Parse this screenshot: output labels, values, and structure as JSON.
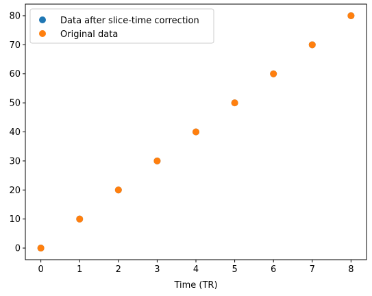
{
  "chart_data": {
    "type": "scatter",
    "title": "",
    "xlabel": "Time (TR)",
    "ylabel": "",
    "xlim": [
      -0.4,
      8.4
    ],
    "ylim": [
      -4,
      84
    ],
    "xticks": [
      0,
      1,
      2,
      3,
      4,
      5,
      6,
      7,
      8
    ],
    "yticks": [
      0,
      10,
      20,
      30,
      40,
      50,
      60,
      70,
      80
    ],
    "grid": false,
    "legend_position": "top-left",
    "series": [
      {
        "name": "Data after slice-time correction",
        "color": "#1f77b4",
        "x": [
          0,
          1,
          2,
          3,
          4,
          5,
          6,
          7,
          8
        ],
        "y": [
          0,
          10,
          20,
          30,
          40,
          50,
          60,
          70,
          80
        ]
      },
      {
        "name": "Original data",
        "color": "#ff7f0e",
        "x": [
          0,
          1,
          2,
          3,
          4,
          5,
          6,
          7,
          8
        ],
        "y": [
          0,
          10,
          20,
          30,
          40,
          50,
          60,
          70,
          80
        ]
      }
    ]
  }
}
